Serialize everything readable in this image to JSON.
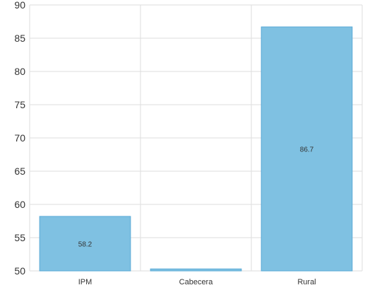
{
  "chart_data": {
    "type": "bar",
    "categories": [
      "IPM",
      "Cabecera",
      "Rural"
    ],
    "values": [
      58.2,
      50.3,
      86.7
    ],
    "data_labels": [
      "58.2",
      "",
      "86.7"
    ],
    "ylim": [
      50,
      90
    ],
    "yticks": [
      50,
      55,
      60,
      65,
      70,
      75,
      80,
      85,
      90
    ],
    "ytick_labels": [
      "50",
      "55",
      "60",
      "65",
      "70",
      "75",
      "80",
      "85",
      "90"
    ],
    "grid": true,
    "bar_color": "#7fc1e2",
    "bar_edge_color": "#5aaad6",
    "grid_color": "#dddddd"
  }
}
